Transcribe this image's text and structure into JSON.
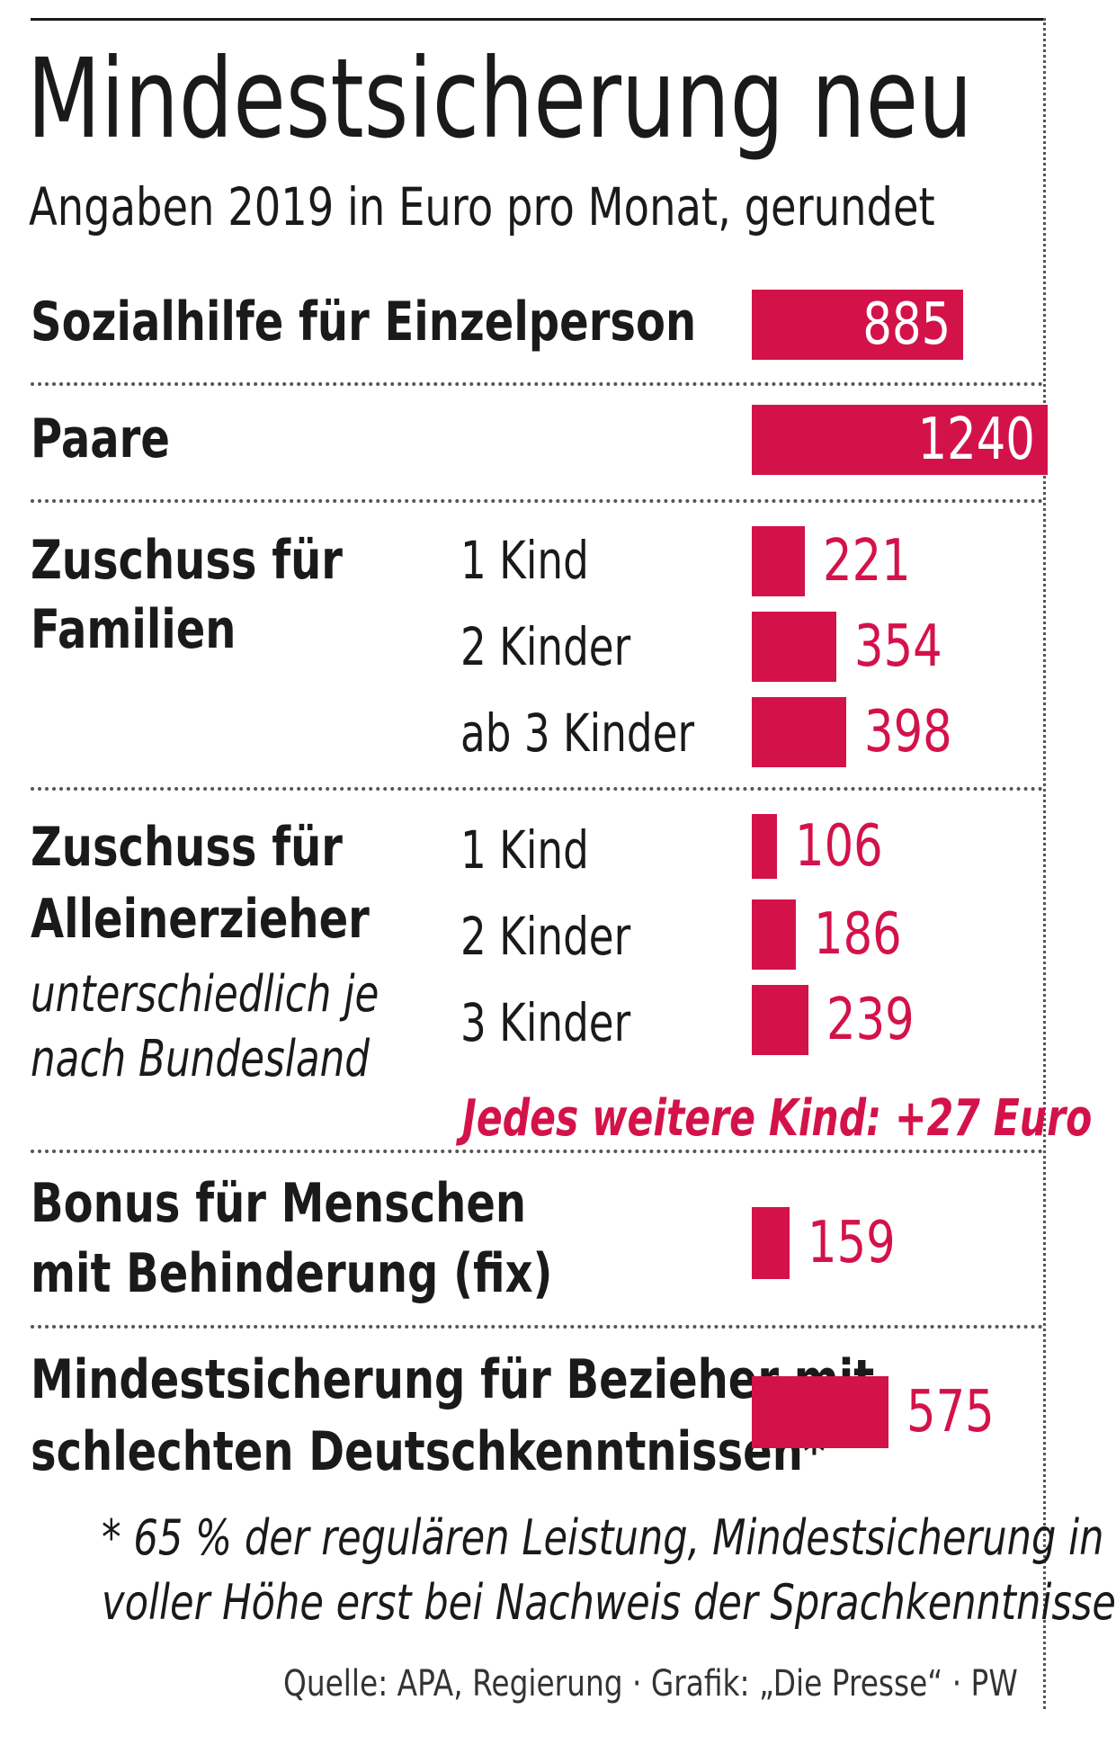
{
  "title": "Mindestsicherung neu",
  "subtitle": "Angaben 2019 in Euro pro Monat, gerundet",
  "colors": {
    "accent": "#d4124a",
    "text": "#1a1a1a"
  },
  "chart_data": {
    "type": "bar",
    "orientation": "horizontal",
    "title": "Mindestsicherung neu",
    "subtitle": "Angaben 2019 in Euro pro Monat, gerundet",
    "unit": "Euro pro Monat",
    "groups": [
      {
        "label_lines": [
          "Sozialhilfe für Einzelperson"
        ],
        "items": [
          {
            "label": "",
            "value": 885
          }
        ]
      },
      {
        "label_lines": [
          "Paare"
        ],
        "items": [
          {
            "label": "",
            "value": 1240
          }
        ]
      },
      {
        "label_lines": [
          "Zuschuss für",
          "Familien"
        ],
        "items": [
          {
            "label": "1 Kind",
            "value": 221
          },
          {
            "label": "2 Kinder",
            "value": 354
          },
          {
            "label": "ab 3 Kinder",
            "value": 398
          }
        ]
      },
      {
        "label_lines": [
          "Zuschuss für",
          "Alleinerzieher"
        ],
        "note_lines": [
          "unterschiedlich je",
          "nach Bundesland"
        ],
        "items": [
          {
            "label": "1 Kind",
            "value": 106
          },
          {
            "label": "2 Kinder",
            "value": 186
          },
          {
            "label": "3 Kinder",
            "value": 239
          }
        ],
        "extra_note": "Jedes weitere Kind: +27 Euro"
      },
      {
        "label_lines": [
          "Bonus für Menschen",
          "mit Behinderung (fix)"
        ],
        "items": [
          {
            "label": "",
            "value": 159
          }
        ]
      },
      {
        "label_lines": [
          "Mindestsicherung für Bezieher mit",
          "schlechten Deutschkenntnissen*"
        ],
        "items": [
          {
            "label": "",
            "value": 575
          }
        ]
      }
    ]
  },
  "footnote_lines": [
    "* 65 % der regulären Leistung, Mindestsicherung in",
    "voller Höhe erst bei Nachweis der Sprachkenntnisse"
  ],
  "source": "Quelle: APA, Regierung · Grafik: „Die Presse“ · PW"
}
